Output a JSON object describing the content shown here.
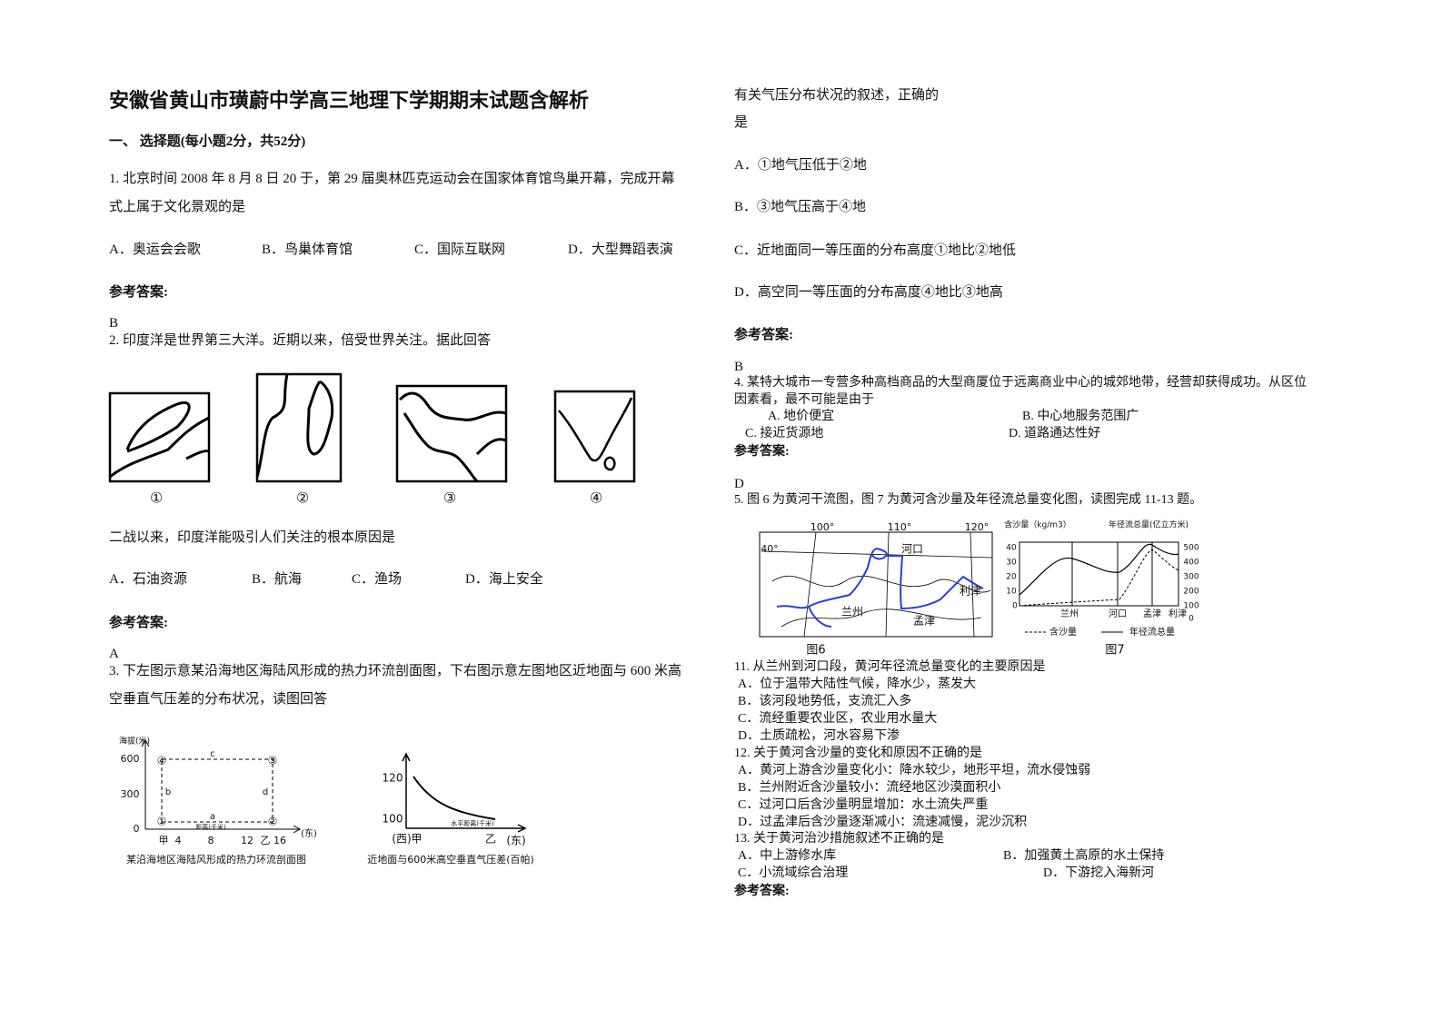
{
  "title": "安徽省黄山市璜蔚中学高三地理下学期期末试题含解析",
  "section": "一、 选择题(每小题2分，共52分)",
  "answer_label": "参考答案:",
  "q1": {
    "stem": "1. 北京时间 2008 年 8 月 8 日 20 于，第 29 届奥林匹克运动会在国家体育馆鸟巢开幕，完成开幕式上属于文化景观的是",
    "options": [
      "A．奥运会会歌",
      "B．鸟巢体育馆",
      "C．国际互联网",
      "D．大型舞蹈表演"
    ],
    "answer": "B"
  },
  "q2": {
    "stem": "2. 印度洋是世界第三大洋。近期以来，倍受世界关注。据此回答",
    "figure_labels": [
      "①",
      "②",
      "③",
      "④"
    ],
    "question": "二战以来，印度洋能吸引人们关注的根本原因是",
    "options": [
      "A．石油资源",
      "B．航海",
      "C．渔场",
      "D．海上安全"
    ],
    "answer": "A"
  },
  "q3": {
    "stem": "3. 下左图示意某沿海地区海陆风形成的热力环流剖面图，下右图示意左图地区近地面与 600 米高空垂直气压差的分布状况，读图回答",
    "figure_left": {
      "y_title": "海拔(米)",
      "yticks": [
        "600",
        "300",
        "0"
      ],
      "xticks": [
        "甲",
        "4",
        "8",
        "12",
        "乙",
        "16"
      ],
      "x_dir": "(东)",
      "x_title": "距离(千米)",
      "points": [
        "①",
        "②",
        "③",
        "④"
      ],
      "segments": [
        "a",
        "b",
        "c",
        "d"
      ],
      "caption": "某沿海地区海陆风形成的热力环流剖面图"
    },
    "figure_right": {
      "yticks": [
        "120",
        "100"
      ],
      "west": "(西)甲",
      "east_point": "乙",
      "east": "(东)",
      "x_title": "水平距离(千米)",
      "caption": "近地面与600米高空垂直气压差(百帕)"
    },
    "question_lines": [
      "有关气压分布状况的叙述，正确的",
      "是"
    ],
    "options": [
      "A．①地气压低于②地",
      "B．③地气压高于④地",
      "C．近地面同一等压面的分布高度①地比②地低",
      "D．高空同一等压面的分布高度④地比③地高"
    ],
    "answer": "B"
  },
  "q4": {
    "stem": "4. 某特大城市一专营多种高档商品的大型商厦位于远离商业中心的城郊地带，经营却获得成功。从区位因素看，最不可能是由于",
    "options": [
      "A. 地价便宜",
      "B. 中心地服务范围广",
      "C. 接近货源地",
      "D. 道路通达性好"
    ],
    "answer": "D"
  },
  "q5": {
    "stem": "5. 图 6 为黄河干流图，图 7 为黄河含沙量及年径流总量变化图，读图完成 11-13 题。",
    "fig6": {
      "longitudes": [
        "100°",
        "110°",
        "120°"
      ],
      "latitude": "40°",
      "places": [
        "河口",
        "兰州",
        "孟津",
        "利津"
      ],
      "caption": "图6"
    },
    "fig7": {
      "y_title": "含沙量（kg/m3）",
      "y2_title": "年径流总量(亿立方米)",
      "yticks": [
        "40",
        "30",
        "20",
        "10",
        "0"
      ],
      "y2ticks": [
        "500",
        "400",
        "300",
        "200",
        "100",
        "0"
      ],
      "categories": [
        "兰州",
        "河口",
        "孟津",
        "利津"
      ],
      "legend": [
        "含沙量",
        "年径流总量"
      ],
      "caption": "图7"
    },
    "subquestions": [
      {
        "stem": "11. 从兰州到河口段，黄河年径流总量变化的主要原因是",
        "options": [
          "A．位于温带大陆性气候，降水少，蒸发大",
          "B．该河段地势低，支流汇入多",
          "C．流经重要农业区，农业用水量大",
          "D．土质疏松，河水容易下渗"
        ]
      },
      {
        "stem": "12. 关于黄河含沙量的变化和原因不正确的是",
        "options": [
          "A．黄河上游含沙量变化小：降水较少，地形平坦，流水侵蚀弱",
          "B．兰州附近含沙量较小：流经地区沙漠面积小",
          "C．过河口后含沙量明显增加：水土流失严重",
          "D．过孟津后含沙量逐渐减小：流速减慢，泥沙沉积"
        ]
      },
      {
        "stem": "13. 关于黄河治沙措施叙述不正确的是",
        "options": [
          "A．中上游修水库",
          "B．加强黄土高原的水土保持",
          "C．小流域综合治理",
          "D．下游挖入海新河"
        ]
      }
    ]
  }
}
